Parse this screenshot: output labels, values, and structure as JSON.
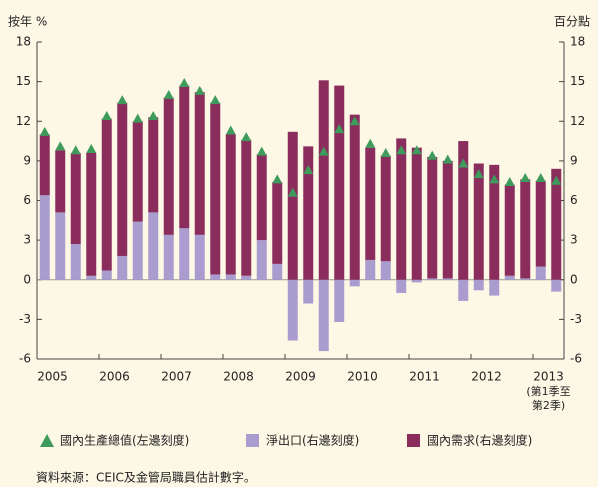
{
  "chart_data": {
    "type": "bar",
    "y_label": "按年 %",
    "y2_label": "百分點",
    "categories": [
      "2005",
      null,
      null,
      null,
      "2006",
      null,
      null,
      null,
      "2007",
      null,
      null,
      null,
      "2008",
      null,
      null,
      null,
      "2009",
      null,
      null,
      null,
      "2010",
      null,
      null,
      null,
      "2011",
      null,
      null,
      null,
      "2012",
      null,
      null,
      null,
      "2013",
      null
    ],
    "annotations": [
      "(第1季至",
      "第2季)"
    ],
    "series": [
      {
        "name": "國內生產總值(左邊刻度)",
        "color": "#3e9b5c",
        "marker": "triangle",
        "values": [
          11.2,
          10.1,
          9.8,
          9.9,
          12.4,
          13.6,
          12.2,
          12.4,
          14.0,
          14.9,
          14.3,
          13.6,
          11.3,
          10.8,
          9.7,
          7.6,
          6.6,
          8.3,
          9.7,
          11.4,
          12.0,
          10.3,
          9.6,
          9.8,
          9.8,
          9.4,
          9.1,
          8.8,
          8.0,
          7.6,
          7.4,
          7.7,
          7.7,
          7.5
        ]
      },
      {
        "name": "淨出口(右邊刻度)",
        "color": "#a99ccf",
        "axis": "y2",
        "values": [
          6.4,
          5.1,
          2.7,
          0.3,
          0.7,
          1.8,
          4.4,
          5.1,
          3.4,
          3.9,
          3.4,
          0.4,
          0.4,
          0.3,
          3.0,
          1.2,
          -4.6,
          -1.8,
          -5.4,
          -3.2,
          -0.5,
          1.5,
          1.4,
          -1.0,
          -0.2,
          0.1,
          0.1,
          -1.6,
          -0.8,
          -1.2,
          0.3,
          0.1,
          1.0,
          -0.9
        ]
      },
      {
        "name": "國內需求(右邊刻度)",
        "color": "#8b2d5c",
        "axis": "y2",
        "values": [
          4.6,
          4.7,
          6.9,
          9.3,
          11.5,
          11.6,
          7.6,
          7.2,
          10.4,
          10.8,
          10.8,
          13.0,
          10.6,
          10.3,
          6.5,
          6.2,
          11.2,
          10.1,
          15.1,
          14.7,
          12.5,
          8.5,
          8.0,
          10.7,
          10.0,
          9.2,
          8.9,
          10.5,
          8.8,
          8.7,
          6.9,
          7.5,
          6.5,
          8.4
        ]
      }
    ],
    "ylim": [
      -6,
      18
    ],
    "yticks": [
      -6,
      -3,
      0,
      3,
      6,
      9,
      12,
      15,
      18
    ],
    "y2lim": [
      -6,
      18
    ],
    "y2ticks": [
      -6,
      -3,
      0,
      3,
      6,
      9,
      12,
      15,
      18
    ],
    "legend": "bottom",
    "source": "資料來源：CEIC及金管局職員估計數字。"
  }
}
